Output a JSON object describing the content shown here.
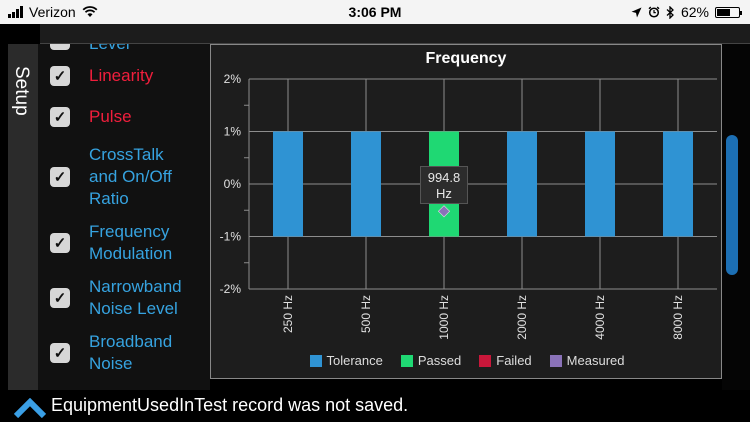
{
  "status_bar": {
    "carrier": "Verizon",
    "time": "3:06 PM",
    "battery": "62%",
    "battery_level": 0.62,
    "icons": [
      "signal-bars-icon",
      "wifi-icon",
      "location-arrow-icon",
      "alarm-clock-icon",
      "bluetooth-icon",
      "battery-icon"
    ]
  },
  "sidebar": {
    "tab_label": "Setup",
    "partial_item": "Level",
    "items": [
      {
        "label_lines": [
          "Linearity"
        ],
        "checked": true,
        "color": "#f01e3c"
      },
      {
        "label_lines": [
          "Pulse"
        ],
        "checked": true,
        "color": "#f01e3c"
      },
      {
        "label_lines": [
          "CrossTalk",
          "and On/Off",
          "Ratio"
        ],
        "checked": true,
        "color": "#36a3e0"
      },
      {
        "label_lines": [
          "Frequency",
          "Modulation"
        ],
        "checked": true,
        "color": "#36a3e0"
      },
      {
        "label_lines": [
          "Narrowband",
          "Noise Level"
        ],
        "checked": true,
        "color": "#36a3e0"
      },
      {
        "label_lines": [
          "Broadband",
          "Noise"
        ],
        "checked": true,
        "color": "#36a3e0"
      }
    ]
  },
  "chart_data": {
    "type": "bar",
    "title": "Frequency",
    "categories": [
      "250 Hz",
      "500 Hz",
      "1000 Hz",
      "2000 Hz",
      "4000 Hz",
      "8000 Hz"
    ],
    "series": [
      {
        "name": "Tolerance",
        "color": "#2f93d3",
        "values": [
          [
            -1,
            1
          ],
          [
            -1,
            1
          ],
          [
            -1,
            1
          ],
          [
            -1,
            1
          ],
          [
            -1,
            1
          ],
          [
            -1,
            1
          ]
        ]
      },
      {
        "name": "Passed",
        "color": "#1fd873",
        "values": [
          null,
          null,
          [
            -1,
            1
          ],
          null,
          null,
          null
        ]
      },
      {
        "name": "Failed",
        "color": "#c8173a",
        "values": [
          null,
          null,
          null,
          null,
          null,
          null
        ]
      },
      {
        "name": "Measured",
        "color": "#8a72b8",
        "values": [
          null,
          null,
          -0.52,
          null,
          null,
          null
        ]
      }
    ],
    "y_ticks": [
      "2%",
      "1%",
      "0%",
      "-1%",
      "-2%"
    ],
    "ylim": [
      -2,
      2
    ],
    "grid": true,
    "legend_position": "bottom",
    "tooltip": {
      "category": "1000 Hz",
      "lines": [
        "994.8",
        "Hz"
      ]
    }
  },
  "footer": {
    "message": "EquipmentUsedInTest record was not saved."
  }
}
